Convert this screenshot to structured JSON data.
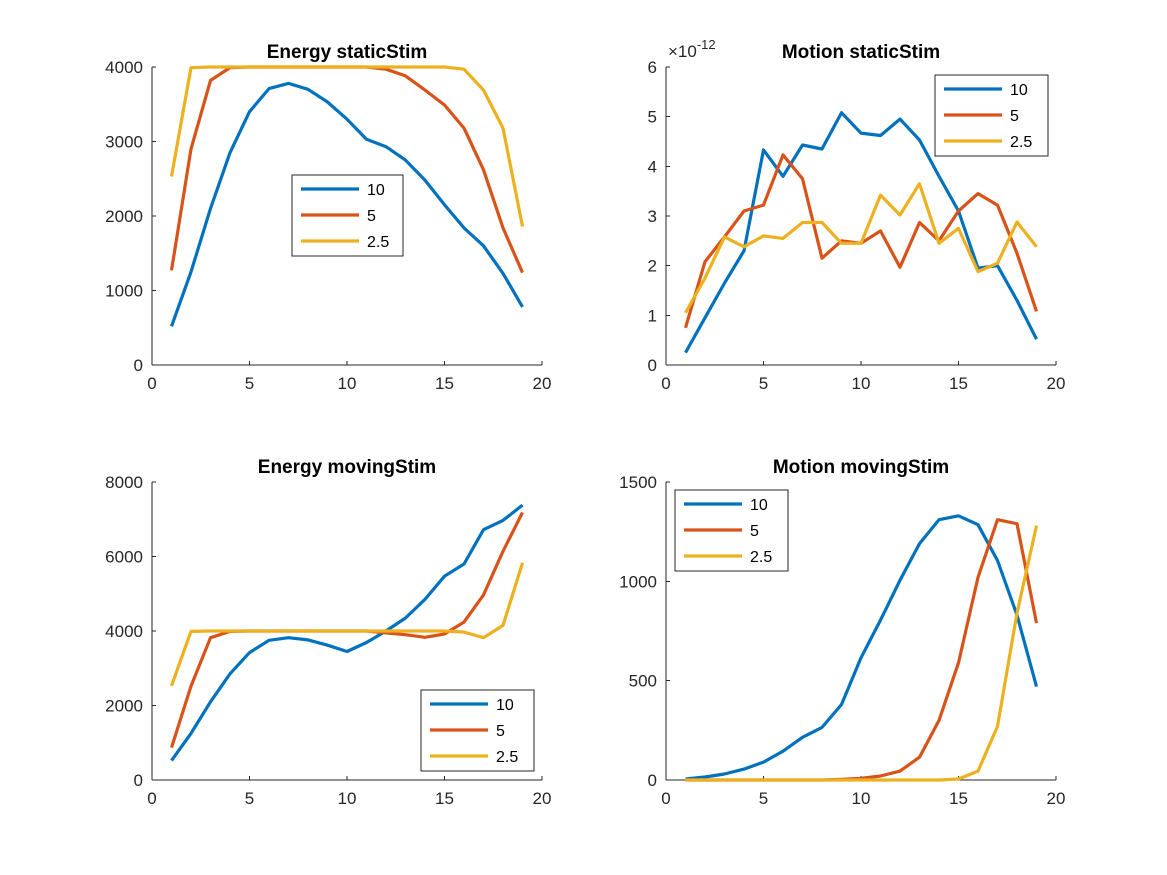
{
  "figure": {
    "background": "#ffffff"
  },
  "chart_data": [
    {
      "type": "line",
      "title": "Energy staticStim",
      "xlabel": "",
      "ylabel": "",
      "xlim": [
        0,
        20
      ],
      "ylim": [
        0,
        4000
      ],
      "xticks": [
        0,
        5,
        10,
        15,
        20
      ],
      "xtick_labels": [
        "0",
        "5",
        "10",
        "15",
        "20"
      ],
      "yticks": [
        0,
        1000,
        2000,
        3000,
        4000
      ],
      "ytick_labels": [
        "0",
        "1000",
        "2000",
        "3000",
        "4000"
      ],
      "exponent_label": "",
      "grid": false,
      "legend_placement": "center",
      "x": [
        1,
        2,
        3,
        4,
        5,
        6,
        7,
        8,
        9,
        10,
        11,
        12,
        13,
        14,
        15,
        16,
        17,
        18,
        19
      ],
      "series": [
        {
          "name": "10",
          "color": "#0072BD",
          "values": [
            520,
            1250,
            2100,
            2850,
            3400,
            3710,
            3780,
            3700,
            3530,
            3300,
            3030,
            2930,
            2750,
            2480,
            2150,
            1840,
            1600,
            1230,
            780
          ]
        },
        {
          "name": "5",
          "color": "#D95319",
          "values": [
            1270,
            2900,
            3820,
            3990,
            4000,
            4000,
            4000,
            4000,
            4000,
            4000,
            4000,
            3970,
            3880,
            3690,
            3490,
            3180,
            2620,
            1840,
            1240
          ]
        },
        {
          "name": "2.5",
          "color": "#EDB120",
          "values": [
            2530,
            3990,
            4000,
            4000,
            4000,
            4000,
            4000,
            4000,
            4000,
            4000,
            4000,
            4000,
            4000,
            4000,
            4000,
            3970,
            3690,
            3180,
            1860
          ]
        }
      ]
    },
    {
      "type": "line",
      "title": "Motion staticStim",
      "xlabel": "",
      "ylabel": "",
      "xlim": [
        0,
        20
      ],
      "ylim": [
        0,
        6
      ],
      "xticks": [
        0,
        5,
        10,
        15,
        20
      ],
      "xtick_labels": [
        "0",
        "5",
        "10",
        "15",
        "20"
      ],
      "yticks": [
        0,
        1,
        2,
        3,
        4,
        5,
        6
      ],
      "ytick_labels": [
        "0",
        "1",
        "2",
        "3",
        "4",
        "5",
        "6"
      ],
      "exponent_label": "×10",
      "exponent_power": "-12",
      "grid": false,
      "legend_placement": "top-right",
      "x": [
        1,
        2,
        3,
        4,
        5,
        6,
        7,
        8,
        9,
        10,
        11,
        12,
        13,
        14,
        15,
        16,
        17,
        18,
        19
      ],
      "series": [
        {
          "name": "10",
          "color": "#0072BD",
          "values": [
            0.25,
            0.95,
            1.65,
            2.3,
            4.33,
            3.8,
            4.43,
            4.35,
            5.08,
            4.67,
            4.62,
            4.95,
            4.53,
            3.8,
            3.1,
            1.95,
            2.0,
            1.3,
            0.52
          ]
        },
        {
          "name": "5",
          "color": "#D95319",
          "values": [
            0.75,
            2.08,
            2.58,
            3.1,
            3.22,
            4.23,
            3.75,
            2.15,
            2.5,
            2.45,
            2.7,
            1.97,
            2.87,
            2.5,
            3.1,
            3.45,
            3.22,
            2.25,
            1.08
          ]
        },
        {
          "name": "2.5",
          "color": "#EDB120",
          "values": [
            1.05,
            1.75,
            2.58,
            2.38,
            2.6,
            2.55,
            2.87,
            2.87,
            2.45,
            2.45,
            3.42,
            3.02,
            3.65,
            2.45,
            2.75,
            1.88,
            2.05,
            2.88,
            2.38
          ]
        }
      ]
    },
    {
      "type": "line",
      "title": "Energy movingStim",
      "xlabel": "",
      "ylabel": "",
      "xlim": [
        0,
        20
      ],
      "ylim": [
        0,
        8000
      ],
      "xticks": [
        0,
        5,
        10,
        15,
        20
      ],
      "xtick_labels": [
        "0",
        "5",
        "10",
        "15",
        "20"
      ],
      "yticks": [
        0,
        2000,
        4000,
        6000,
        8000
      ],
      "ytick_labels": [
        "0",
        "2000",
        "4000",
        "6000",
        "8000"
      ],
      "exponent_label": "",
      "grid": false,
      "legend_placement": "bottom-right",
      "x": [
        1,
        2,
        3,
        4,
        5,
        6,
        7,
        8,
        9,
        10,
        11,
        12,
        13,
        14,
        15,
        16,
        17,
        18,
        19
      ],
      "series": [
        {
          "name": "10",
          "color": "#0072BD",
          "values": [
            520,
            1250,
            2100,
            2850,
            3420,
            3750,
            3820,
            3760,
            3620,
            3450,
            3690,
            4000,
            4350,
            4850,
            5470,
            5800,
            6720,
            6970,
            7380
          ]
        },
        {
          "name": "5",
          "color": "#D95319",
          "values": [
            870,
            2520,
            3820,
            3990,
            4000,
            4000,
            4000,
            4000,
            4000,
            4000,
            4000,
            3950,
            3900,
            3830,
            3920,
            4240,
            4970,
            6140,
            7180
          ]
        },
        {
          "name": "2.5",
          "color": "#EDB120",
          "values": [
            2530,
            3990,
            4000,
            4000,
            4000,
            4000,
            4000,
            4000,
            4000,
            4000,
            4000,
            4000,
            4000,
            4000,
            4000,
            3970,
            3820,
            4150,
            5830
          ]
        }
      ]
    },
    {
      "type": "line",
      "title": "Motion movingStim",
      "xlabel": "",
      "ylabel": "",
      "xlim": [
        0,
        20
      ],
      "ylim": [
        0,
        1500
      ],
      "xticks": [
        0,
        5,
        10,
        15,
        20
      ],
      "xtick_labels": [
        "0",
        "5",
        "10",
        "15",
        "20"
      ],
      "yticks": [
        0,
        500,
        1000,
        1500
      ],
      "ytick_labels": [
        "0",
        "500",
        "1000",
        "1500"
      ],
      "exponent_label": "",
      "grid": false,
      "legend_placement": "top-left",
      "x": [
        1,
        2,
        3,
        4,
        5,
        6,
        7,
        8,
        9,
        10,
        11,
        12,
        13,
        14,
        15,
        16,
        17,
        18,
        19
      ],
      "series": [
        {
          "name": "10",
          "color": "#0072BD",
          "values": [
            5,
            15,
            30,
            55,
            90,
            145,
            215,
            265,
            380,
            615,
            805,
            1005,
            1190,
            1310,
            1330,
            1285,
            1105,
            830,
            470
          ]
        },
        {
          "name": "5",
          "color": "#D95319",
          "values": [
            0,
            0,
            0,
            0,
            0,
            0,
            0,
            0,
            3,
            8,
            20,
            45,
            115,
            300,
            590,
            1020,
            1310,
            1290,
            790
          ]
        },
        {
          "name": "2.5",
          "color": "#EDB120",
          "values": [
            0,
            0,
            0,
            0,
            0,
            0,
            0,
            0,
            0,
            0,
            0,
            0,
            0,
            0,
            5,
            45,
            270,
            840,
            1280
          ]
        }
      ]
    }
  ]
}
